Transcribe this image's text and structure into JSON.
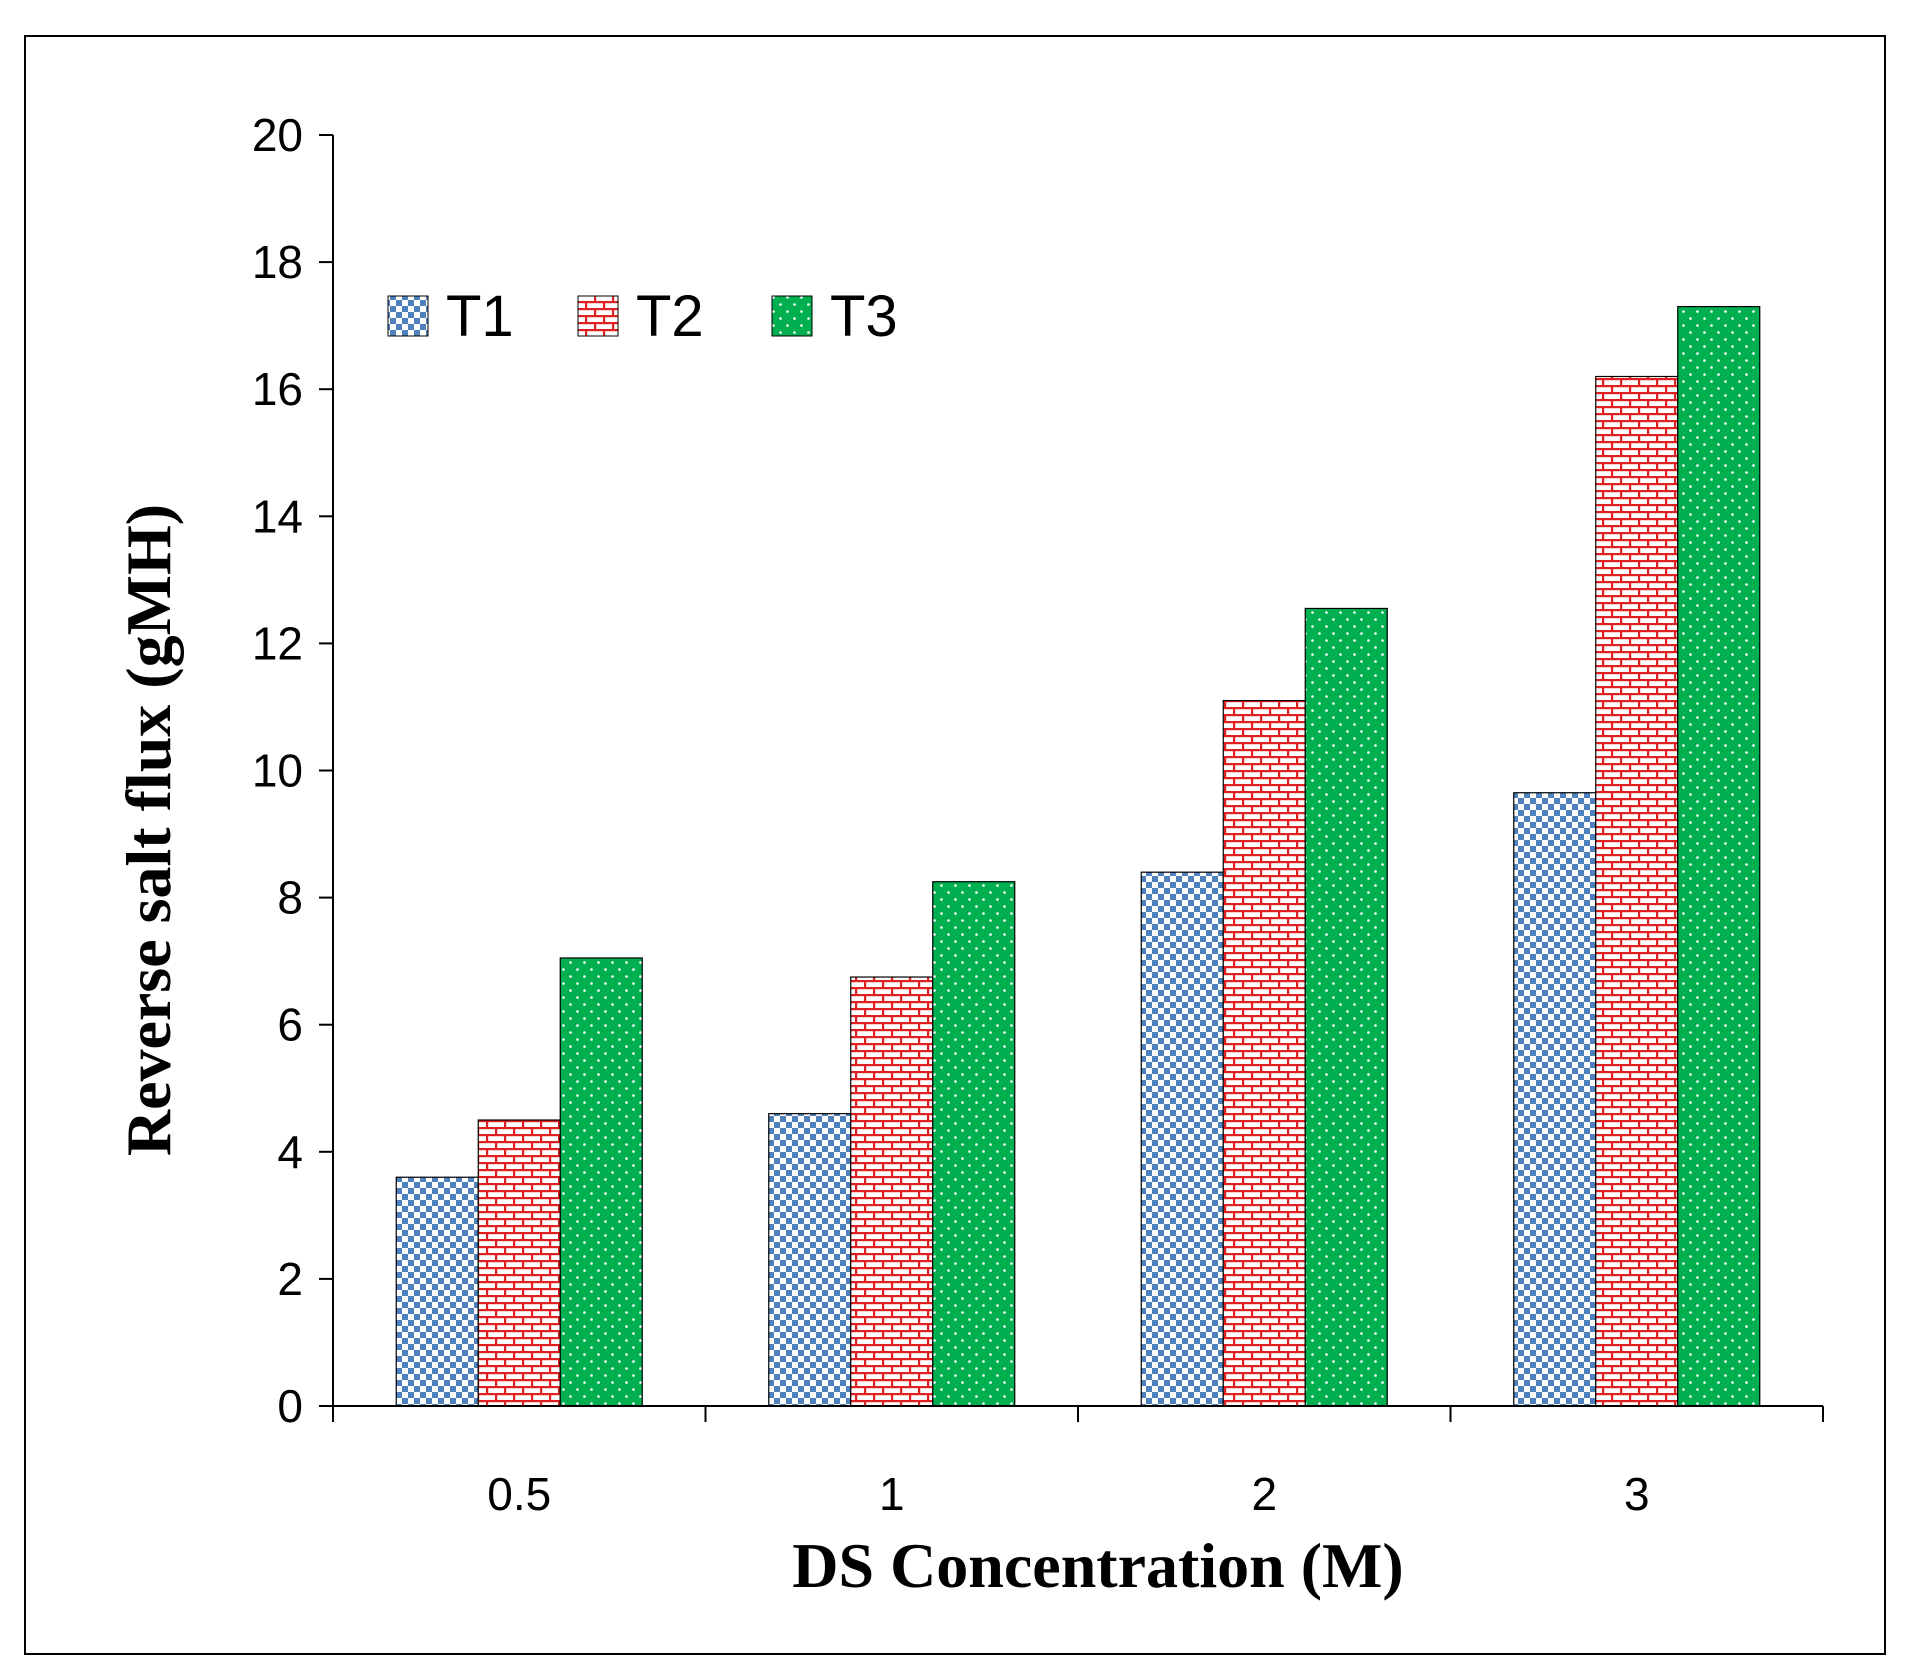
{
  "chart_data": {
    "type": "bar",
    "categories": [
      "0.5",
      "1",
      "2",
      "3"
    ],
    "series": [
      {
        "name": "T1",
        "values": [
          3.6,
          4.6,
          8.4,
          9.65
        ],
        "color": "#4f81bd",
        "pattern": "checker"
      },
      {
        "name": "T2",
        "values": [
          4.5,
          6.75,
          11.1,
          16.2
        ],
        "color": "#e02020",
        "pattern": "brick"
      },
      {
        "name": "T3",
        "values": [
          7.05,
          8.25,
          12.55,
          17.3
        ],
        "color": "#00b050",
        "pattern": "dots"
      }
    ],
    "xlabel": "DS Concentration (M)",
    "ylabel": "Reverse salt flux (gMH)",
    "ylim": [
      0,
      20
    ],
    "yticks": [
      "0",
      "2",
      "4",
      "6",
      "8",
      "10",
      "12",
      "14",
      "16",
      "18",
      "20"
    ],
    "legend_position": "top-left",
    "grid": false
  }
}
